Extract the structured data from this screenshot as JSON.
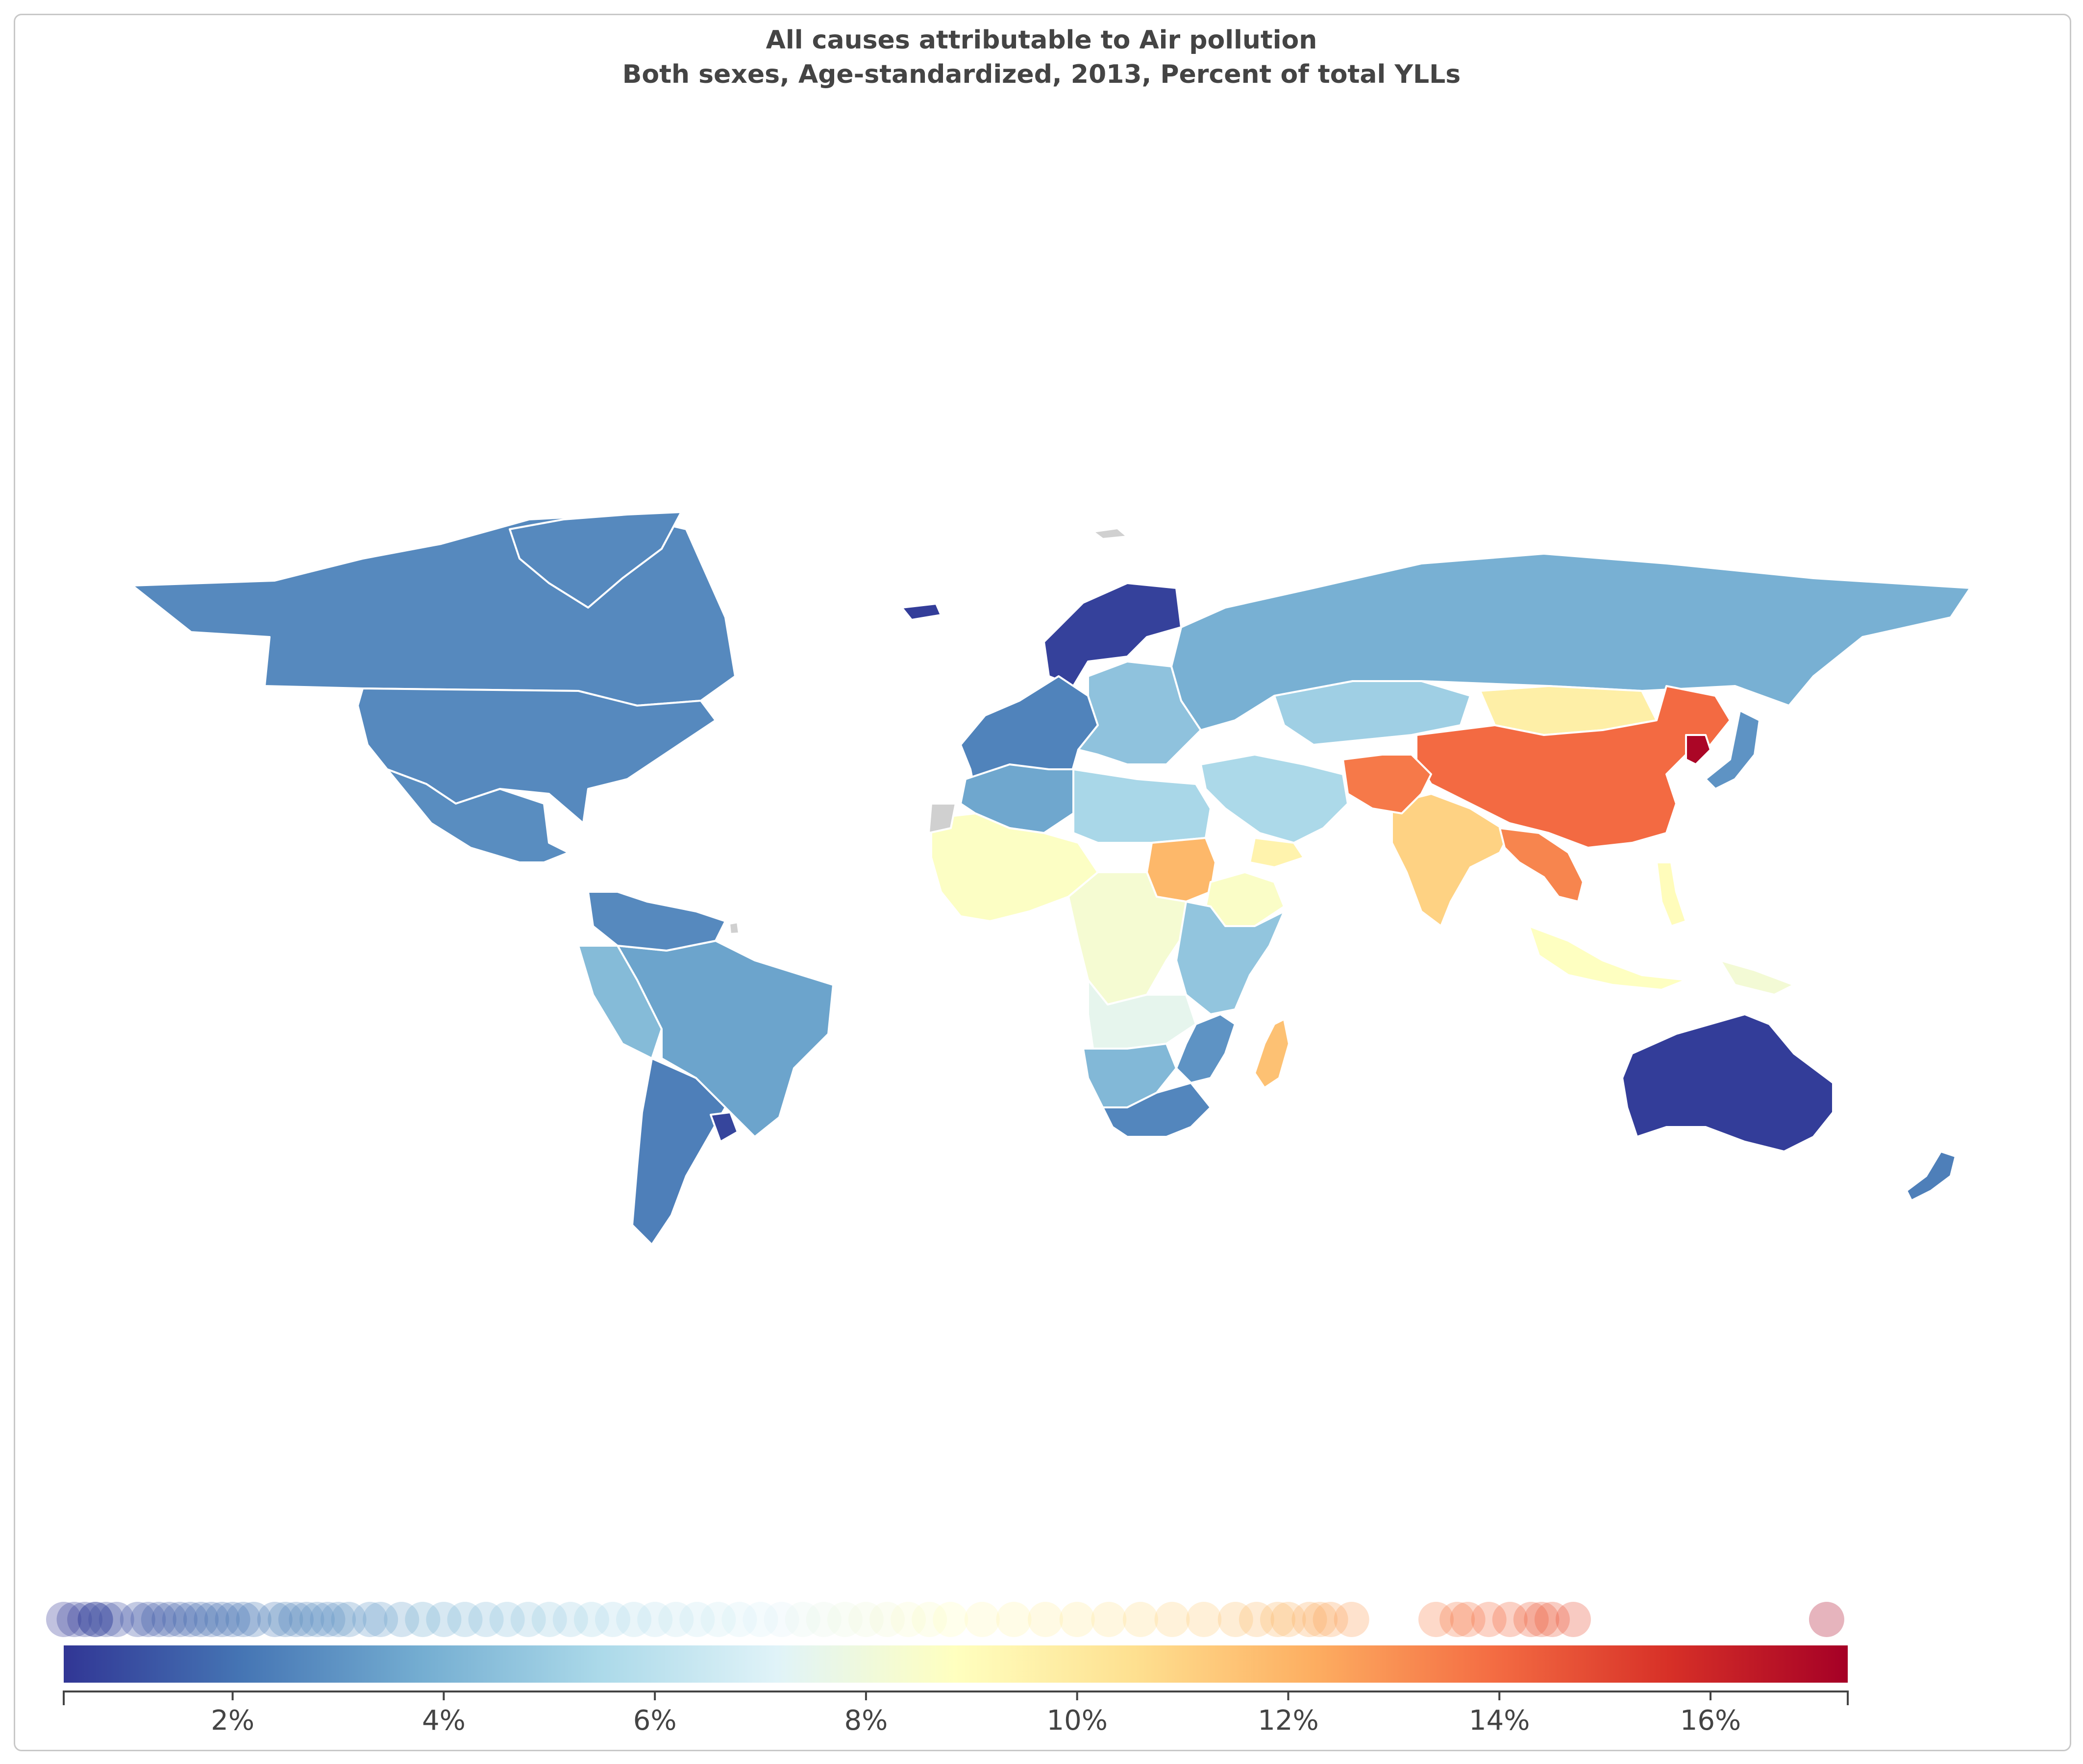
{
  "title_line1": "All causes attributable to Air pollution",
  "title_line2": "Both sexes, Age-standardized, 2013, Percent of total YLLs",
  "colors": {
    "background": "#ffffff",
    "no_data": "#d0d0d0",
    "border": "#ffffff",
    "title": "#444444",
    "frame": "#c8c8c8"
  },
  "colorscale": {
    "name": "RdYlBu_r",
    "stops": [
      "#313695",
      "#4575b4",
      "#74add1",
      "#abd9e9",
      "#e0f3f8",
      "#ffffbf",
      "#fee090",
      "#fdae61",
      "#f46d43",
      "#d73027",
      "#a50026"
    ]
  },
  "chart_data": {
    "type": "choropleth",
    "metric": "Percent of total YLLs",
    "range": [
      0.4,
      17.3
    ],
    "ticks": [
      2,
      4,
      6,
      8,
      10,
      12,
      14,
      16
    ],
    "tick_labels": [
      "2%",
      "4%",
      "6%",
      "8%",
      "10%",
      "12%",
      "14%",
      "16%"
    ],
    "regions": [
      {
        "name": "Canada",
        "value": 2.7
      },
      {
        "name": "United States",
        "value": 2.7
      },
      {
        "name": "Mexico",
        "value": 2.8
      },
      {
        "name": "Greenland",
        "value": 2.7
      },
      {
        "name": "Iceland",
        "value": 0.6
      },
      {
        "name": "Brazil",
        "value": 3.5
      },
      {
        "name": "Argentina",
        "value": 2.4
      },
      {
        "name": "Peru",
        "value": 4.3
      },
      {
        "name": "Colombia/Venezuela",
        "value": 2.7
      },
      {
        "name": "Uruguay",
        "value": 0.8
      },
      {
        "name": "Norway/Sweden/Finland",
        "value": 0.7
      },
      {
        "name": "Western Europe",
        "value": 2.5
      },
      {
        "name": "Eastern Europe",
        "value": 4.6
      },
      {
        "name": "Russia",
        "value": 3.9
      },
      {
        "name": "Kazakhstan",
        "value": 5.1
      },
      {
        "name": "Mongolia",
        "value": 9.7
      },
      {
        "name": "China",
        "value": 14.0
      },
      {
        "name": "North Korea",
        "value": 17.1
      },
      {
        "name": "Japan",
        "value": 3.0
      },
      {
        "name": "India",
        "value": 11.0
      },
      {
        "name": "Afghanistan/Pakistan",
        "value": 13.6
      },
      {
        "name": "Myanmar/Laos/Vietnam",
        "value": 13.3
      },
      {
        "name": "Middle East",
        "value": 5.5
      },
      {
        "name": "Yemen",
        "value": 9.5
      },
      {
        "name": "North Africa",
        "value": 3.6
      },
      {
        "name": "Sahara (Libya/Egypt)",
        "value": 5.4
      },
      {
        "name": "West Africa",
        "value": 8.7
      },
      {
        "name": "Sudan",
        "value": 11.9
      },
      {
        "name": "Ethiopia",
        "value": 8.6
      },
      {
        "name": "Central Africa",
        "value": 8.3
      },
      {
        "name": "East Africa",
        "value": 4.7
      },
      {
        "name": "Angola/Zambia",
        "value": 7.5
      },
      {
        "name": "Namibia/Botswana",
        "value": 4.2
      },
      {
        "name": "South Africa",
        "value": 2.6
      },
      {
        "name": "Mozambique",
        "value": 3.0
      },
      {
        "name": "Madagascar",
        "value": 11.6
      },
      {
        "name": "Indonesia",
        "value": 8.8
      },
      {
        "name": "Philippines",
        "value": 9.0
      },
      {
        "name": "Papua New Guinea",
        "value": 8.2
      },
      {
        "name": "Australia",
        "value": 0.6
      },
      {
        "name": "New Zealand",
        "value": 2.4
      }
    ],
    "distribution_values": [
      0.4,
      0.5,
      0.6,
      0.7,
      0.7,
      0.8,
      0.9,
      1.1,
      1.2,
      1.3,
      1.4,
      1.5,
      1.6,
      1.7,
      1.8,
      1.9,
      2.0,
      2.1,
      2.2,
      2.4,
      2.5,
      2.6,
      2.7,
      2.8,
      2.9,
      3.0,
      3.1,
      3.3,
      3.4,
      3.6,
      3.8,
      4.0,
      4.2,
      4.4,
      4.6,
      4.8,
      5.0,
      5.2,
      5.4,
      5.6,
      5.8,
      6.0,
      6.2,
      6.4,
      6.6,
      6.8,
      7.0,
      7.2,
      7.4,
      7.6,
      7.8,
      8.0,
      8.2,
      8.4,
      8.6,
      8.8,
      9.1,
      9.4,
      9.7,
      10.0,
      10.3,
      10.6,
      10.9,
      11.2,
      11.5,
      11.7,
      11.9,
      12.0,
      12.2,
      12.3,
      12.4,
      12.6,
      13.4,
      13.6,
      13.7,
      13.9,
      14.1,
      14.3,
      14.4,
      14.5,
      14.7,
      17.1
    ]
  }
}
